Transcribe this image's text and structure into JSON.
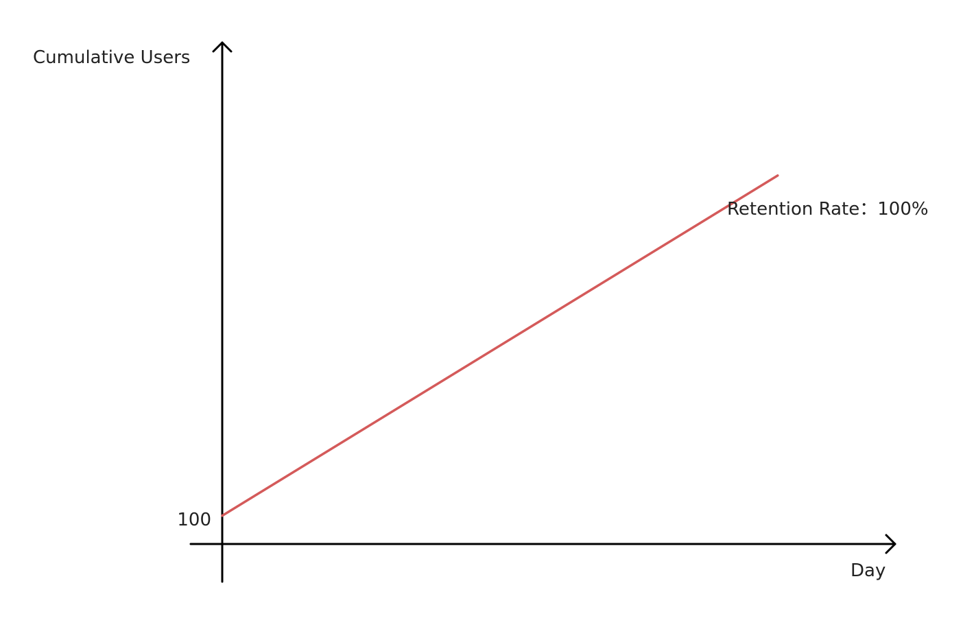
{
  "chart_data": {
    "type": "line",
    "title": "",
    "xlabel": "Day",
    "ylabel": "Cumulative Users",
    "y_tick_labels": [
      "100"
    ],
    "annotation": "Retention Rate：100%",
    "series": [
      {
        "color": "#d45a5a",
        "points": [
          {
            "x": 0,
            "y": 100
          },
          {
            "x": 1,
            "y": 700
          }
        ]
      }
    ],
    "xlim": [
      0,
      1.22
    ],
    "ylim": [
      50,
      960
    ],
    "grid": false,
    "legend": "none"
  }
}
